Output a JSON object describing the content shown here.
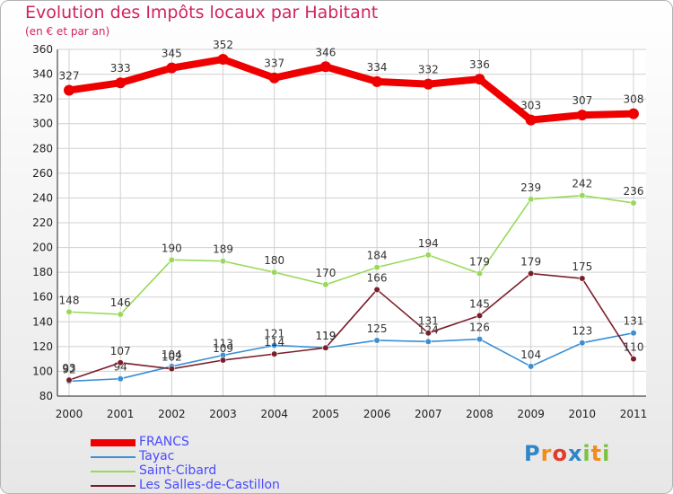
{
  "chart_data": {
    "type": "line",
    "title": "Evolution des Impôts locaux par Habitant",
    "subtitle": "(en € et par an)",
    "xlabel": "",
    "ylabel": "",
    "ylim": [
      80,
      360
    ],
    "yticks": [
      80,
      100,
      120,
      140,
      160,
      180,
      200,
      220,
      240,
      260,
      280,
      300,
      320,
      340,
      360
    ],
    "x": [
      "2000",
      "2001",
      "2002",
      "2003",
      "2004",
      "2005",
      "2006",
      "2007",
      "2008",
      "2009",
      "2010",
      "2011"
    ],
    "series": [
      {
        "name": "FRANCS",
        "color": "#ee0000",
        "values": [
          327,
          333,
          345,
          352,
          337,
          346,
          334,
          332,
          336,
          303,
          307,
          308
        ]
      },
      {
        "name": "Tayac",
        "color": "#3a8fd5",
        "values": [
          92,
          94,
          104,
          113,
          121,
          119,
          125,
          124,
          126,
          104,
          123,
          131
        ]
      },
      {
        "name": "Saint-Cibard",
        "color": "#99d95a",
        "values": [
          148,
          146,
          190,
          189,
          180,
          170,
          184,
          194,
          179,
          239,
          242,
          236
        ]
      },
      {
        "name": "Les Salles-de-Castillon",
        "color": "#7a1f2a",
        "values": [
          93,
          107,
          102,
          109,
          114,
          119,
          166,
          131,
          145,
          179,
          175,
          110
        ]
      }
    ],
    "grid": true,
    "legend": "bottom-left"
  },
  "logo": {
    "text": "Proxiti"
  }
}
